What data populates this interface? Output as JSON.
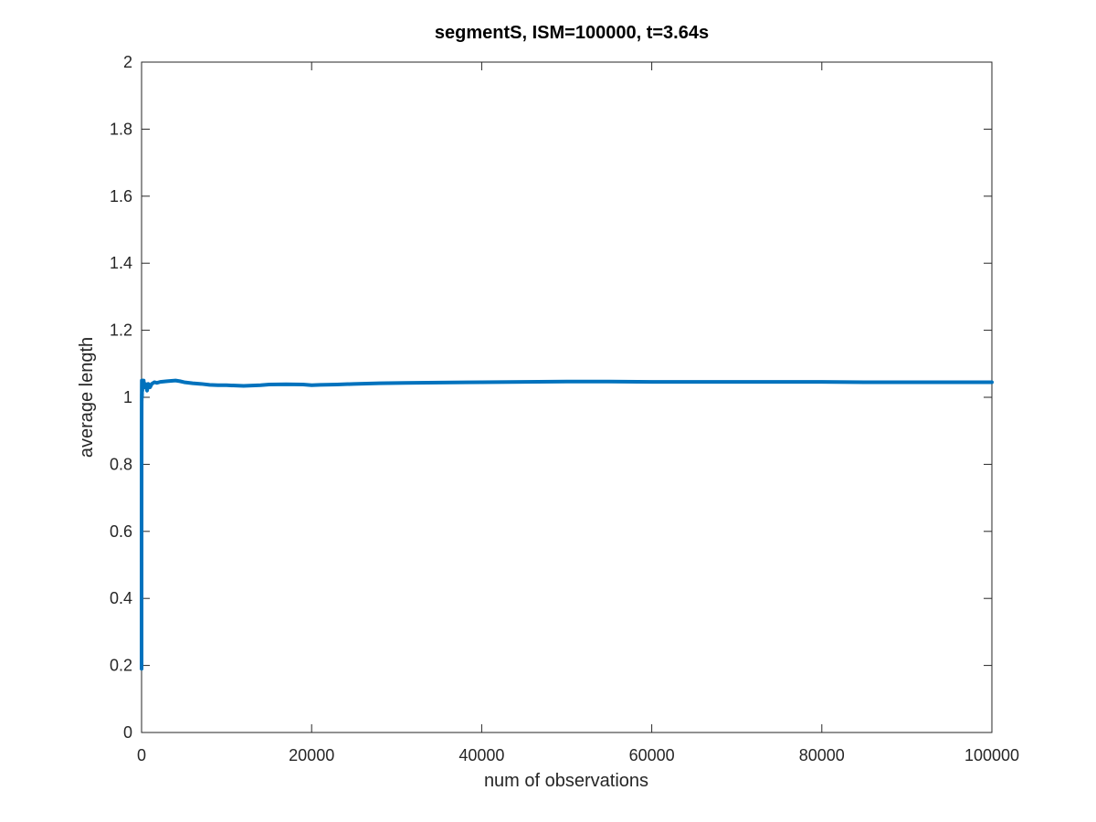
{
  "chart_data": {
    "type": "scatter",
    "title": "segmentS, ISM=100000, t=3.64s",
    "xlabel": "num of observations",
    "ylabel": "average length",
    "xlim": [
      0,
      100000
    ],
    "ylim": [
      0,
      2
    ],
    "x_ticks": [
      0,
      20000,
      40000,
      60000,
      80000,
      100000
    ],
    "x_tick_labels": [
      "0",
      "20000",
      "40000",
      "60000",
      "80000",
      "100000"
    ],
    "y_ticks": [
      0,
      0.2,
      0.4,
      0.6,
      0.8,
      1,
      1.2,
      1.4,
      1.6,
      1.8,
      2
    ],
    "y_tick_labels": [
      "0",
      "0.2",
      "0.4",
      "0.6",
      "0.8",
      "1",
      "1.2",
      "1.4",
      "1.6",
      "1.8",
      "2"
    ],
    "grid": false,
    "marker_color": "#0072BD",
    "series": [
      {
        "x": [
          1,
          2,
          3,
          4,
          5,
          6,
          7,
          8,
          10,
          12,
          15,
          18,
          22,
          27,
          33,
          40,
          50,
          60,
          75,
          90,
          110,
          130,
          160,
          200,
          250,
          300,
          380,
          460,
          550,
          650,
          800,
          1000,
          1200,
          1500,
          1800,
          2200,
          2600,
          3000,
          3500,
          4000,
          4500,
          5000,
          6000,
          7000,
          8000,
          9000,
          10000,
          11000,
          12000,
          13000,
          14000,
          15000,
          17000,
          19000,
          20000,
          21000,
          23000,
          25000,
          28000,
          31000,
          35000,
          40000,
          45000,
          50000,
          55000,
          60000,
          65000,
          70000,
          75000,
          80000,
          85000,
          90000,
          95000,
          100000
        ],
        "y": [
          0.19,
          0.51,
          0.65,
          0.71,
          0.78,
          0.85,
          0.89,
          0.93,
          0.96,
          0.98,
          1.01,
          0.99,
          1.03,
          1.05,
          1.02,
          1.04,
          1.0,
          1.03,
          1.05,
          1.02,
          1.04,
          1.03,
          1.05,
          1.04,
          1.05,
          1.03,
          1.04,
          1.04,
          1.03,
          1.02,
          1.04,
          1.03,
          1.04,
          1.045,
          1.043,
          1.046,
          1.047,
          1.048,
          1.049,
          1.05,
          1.048,
          1.045,
          1.042,
          1.04,
          1.037,
          1.036,
          1.036,
          1.035,
          1.034,
          1.035,
          1.036,
          1.038,
          1.039,
          1.038,
          1.036,
          1.037,
          1.038,
          1.04,
          1.042,
          1.043,
          1.044,
          1.045,
          1.046,
          1.047,
          1.047,
          1.046,
          1.046,
          1.046,
          1.046,
          1.046,
          1.045,
          1.045,
          1.045,
          1.045
        ]
      }
    ]
  }
}
